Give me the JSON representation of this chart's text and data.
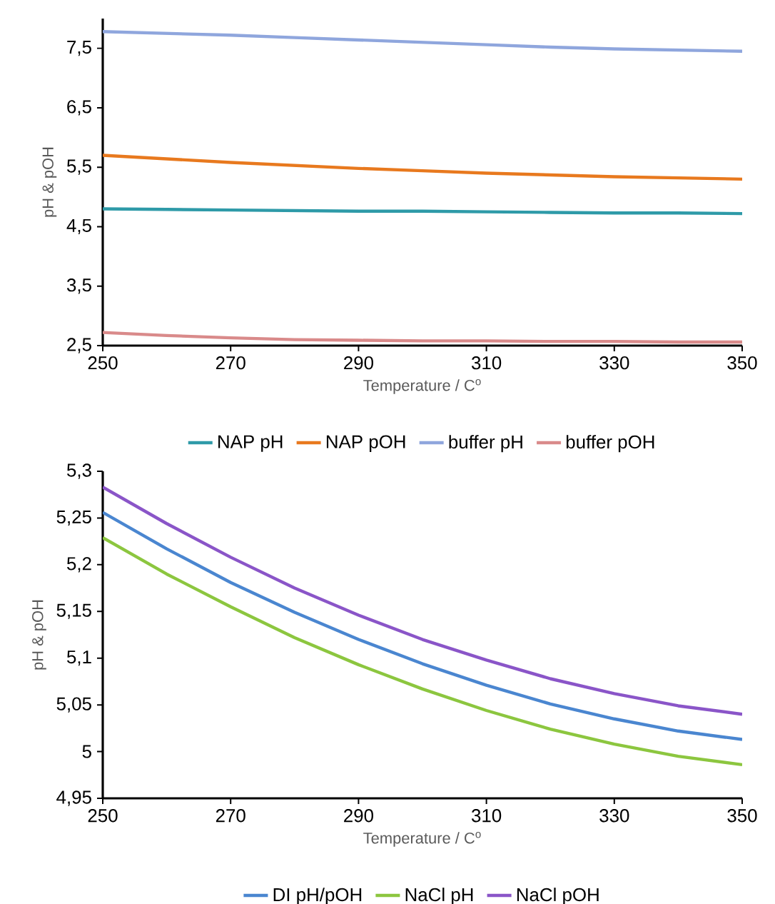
{
  "chart_data": [
    {
      "type": "line",
      "xlabel": "Temperature / C$^{o}$",
      "ylabel": "pH & pOH",
      "x": [
        250,
        260,
        270,
        280,
        290,
        300,
        310,
        320,
        330,
        340,
        350
      ],
      "xlim": [
        250,
        350
      ],
      "xticks": [
        250,
        270,
        290,
        310,
        330,
        350
      ],
      "ylim": [
        2.5,
        8
      ],
      "yticks": [
        {
          "value": 2.5,
          "label": "2,5"
        },
        {
          "value": 3.5,
          "label": "3,5"
        },
        {
          "value": 4.5,
          "label": "4,5"
        },
        {
          "value": 5.5,
          "label": "5,5"
        },
        {
          "value": 6.5,
          "label": "6,5"
        },
        {
          "value": 7.5,
          "label": "7,5"
        }
      ],
      "legend": "bottom",
      "series": [
        {
          "name": "NAP pH",
          "color": "#2e9aa8",
          "values": [
            4.8,
            4.79,
            4.78,
            4.77,
            4.76,
            4.76,
            4.75,
            4.74,
            4.73,
            4.73,
            4.72
          ]
        },
        {
          "name": "NAP pOH",
          "color": "#e8791e",
          "values": [
            5.7,
            5.64,
            5.58,
            5.53,
            5.48,
            5.44,
            5.4,
            5.37,
            5.34,
            5.32,
            5.3
          ]
        },
        {
          "name": "buffer pH",
          "color": "#8fa6dd",
          "values": [
            7.78,
            7.75,
            7.72,
            7.68,
            7.64,
            7.6,
            7.56,
            7.52,
            7.49,
            7.47,
            7.45
          ]
        },
        {
          "name": "buffer pOH",
          "color": "#d98a8a",
          "values": [
            2.72,
            2.67,
            2.63,
            2.6,
            2.59,
            2.58,
            2.58,
            2.57,
            2.57,
            2.56,
            2.56
          ]
        }
      ]
    },
    {
      "type": "line",
      "xlabel": "Temperature / C$^{o}$",
      "ylabel": "pH & pOH",
      "x": [
        250,
        260,
        270,
        280,
        290,
        300,
        310,
        320,
        330,
        340,
        350
      ],
      "xlim": [
        250,
        350
      ],
      "xticks": [
        250,
        270,
        290,
        310,
        330,
        350
      ],
      "ylim": [
        4.95,
        5.3
      ],
      "yticks": [
        {
          "value": 4.95,
          "label": "4,95"
        },
        {
          "value": 5,
          "label": "5"
        },
        {
          "value": 5.05,
          "label": "5,05"
        },
        {
          "value": 5.1,
          "label": "5,1"
        },
        {
          "value": 5.15,
          "label": "5,15"
        },
        {
          "value": 5.2,
          "label": "5,2"
        },
        {
          "value": 5.25,
          "label": "5,25"
        },
        {
          "value": 5.3,
          "label": "5,3"
        }
      ],
      "legend": "bottom",
      "series": [
        {
          "name": "DI pH/pOH",
          "color": "#4a86d0",
          "values": [
            5.256,
            5.217,
            5.181,
            5.149,
            5.12,
            5.094,
            5.071,
            5.051,
            5.035,
            5.022,
            5.013
          ]
        },
        {
          "name": "NaCl pH",
          "color": "#8cc63f",
          "values": [
            5.229,
            5.19,
            5.155,
            5.122,
            5.093,
            5.067,
            5.044,
            5.024,
            5.008,
            4.995,
            4.986
          ]
        },
        {
          "name": "NaCl pOH",
          "color": "#8a55c8",
          "values": [
            5.283,
            5.244,
            5.208,
            5.175,
            5.146,
            5.12,
            5.098,
            5.078,
            5.062,
            5.049,
            5.04
          ]
        }
      ]
    }
  ]
}
